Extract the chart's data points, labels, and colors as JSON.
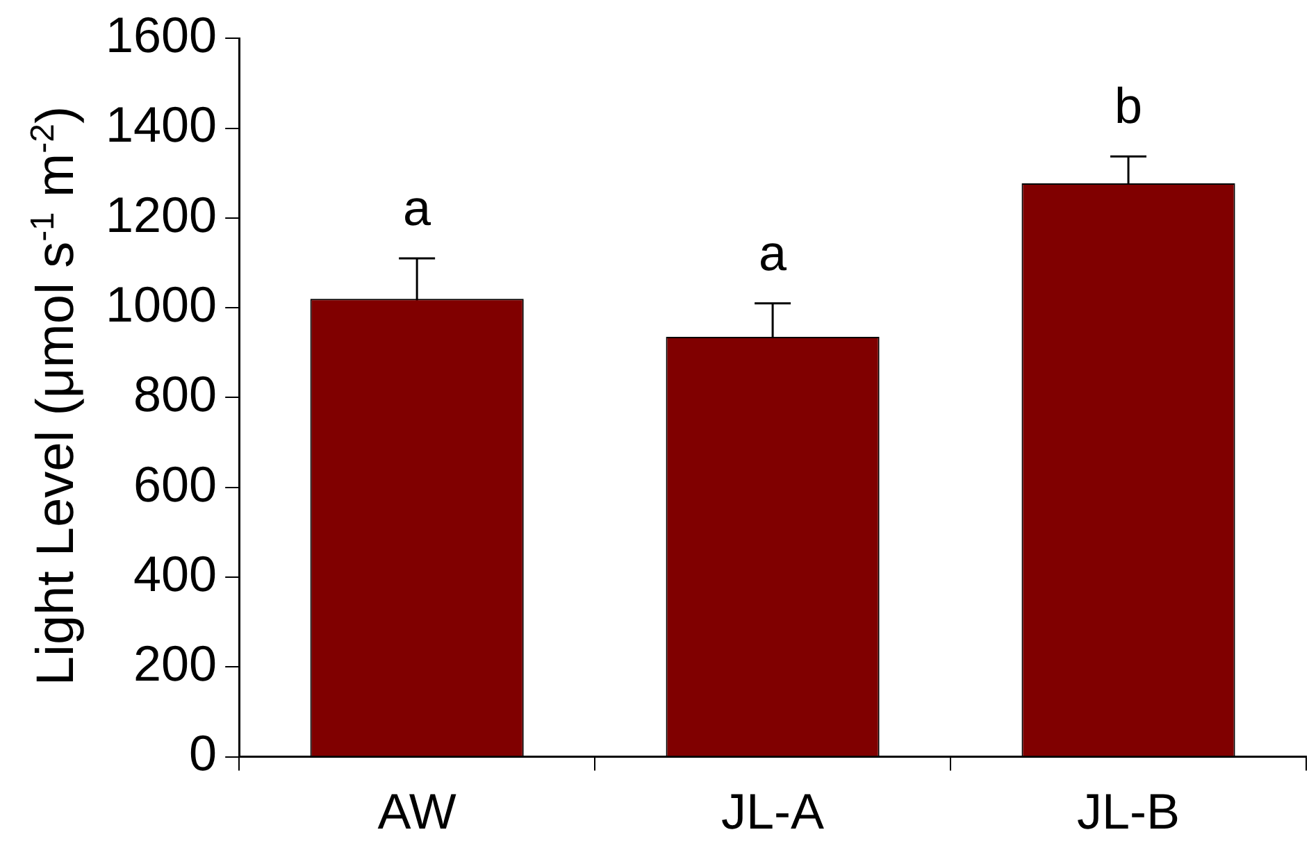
{
  "chart_data": {
    "type": "bar",
    "ylabel": "Light Level (μmol s$^{-1}$ m$^{-2}$)",
    "categories": [
      "AW",
      "JL-A",
      "JL-B"
    ],
    "values": [
      1020,
      935,
      1277
    ],
    "errors": [
      90,
      75,
      60
    ],
    "color": "#800000",
    "ylim": [
      0,
      1600
    ],
    "yticks": [
      0,
      200,
      400,
      600,
      800,
      1000,
      1200,
      1400,
      1600
    ],
    "grid": false,
    "legend": false,
    "annotations": [
      "a",
      "a",
      "b"
    ]
  }
}
